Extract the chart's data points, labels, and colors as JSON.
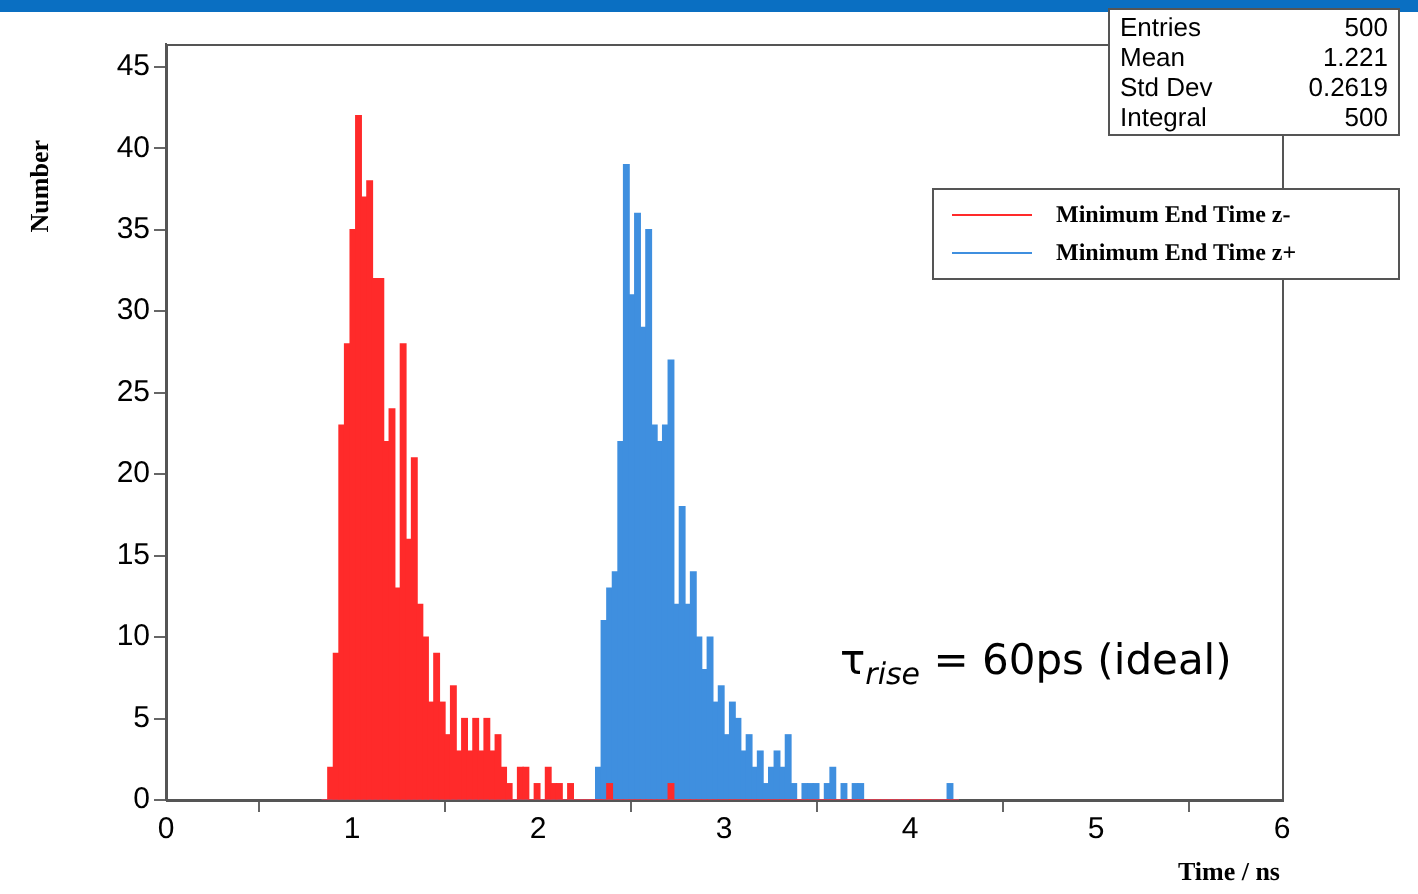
{
  "chart_data": {
    "type": "histogram",
    "xlabel": "Time / ns",
    "ylabel": "Number",
    "bins": [
      0.84,
      0.87,
      0.9,
      0.93,
      0.96,
      0.99,
      1.02,
      1.05,
      1.08,
      1.11,
      1.14,
      1.17,
      1.2,
      1.23,
      1.26,
      1.29,
      1.32,
      1.35,
      1.38,
      1.41,
      1.44,
      1.47,
      1.5,
      1.53,
      1.56,
      1.59,
      1.62,
      1.65,
      1.68,
      1.71,
      1.74,
      1.77,
      1.8,
      1.83,
      1.86,
      1.89,
      1.92,
      1.95,
      1.98,
      2.01,
      2.04,
      2.07,
      2.1,
      2.13,
      2.16,
      2.19,
      2.22,
      2.25,
      2.28,
      2.31,
      2.34,
      2.37,
      2.4,
      2.43,
      2.46,
      2.49,
      2.52,
      2.55,
      2.58,
      2.61,
      2.64,
      2.67,
      2.7,
      2.73,
      2.76,
      2.79,
      2.82,
      2.85,
      2.88,
      2.91,
      2.94,
      2.97,
      3,
      3.03,
      3.06,
      3.09,
      3.12,
      3.15,
      3.18,
      3.21,
      3.24,
      3.27,
      3.3,
      3.33,
      3.36,
      3.39,
      3.42,
      3.45,
      3.48,
      3.51,
      3.54,
      3.57,
      3.6,
      3.63,
      3.66,
      3.69,
      3.72,
      3.75,
      3.78,
      3.81,
      3.84,
      3.87,
      3.9,
      3.93,
      3.96,
      3.99,
      4.02,
      4.05,
      4.08,
      4.11,
      4.14,
      4.17,
      4.2,
      4.23,
      4.26
    ],
    "series": [
      {
        "name": "Minimum End Time z-",
        "color": "#ff2a2a",
        "values": [
          0,
          2,
          9,
          23,
          28,
          35,
          42,
          37,
          38,
          32,
          32,
          22,
          24,
          13,
          28,
          16,
          21,
          12,
          10,
          6,
          9,
          6,
          4,
          7,
          3,
          5,
          3,
          5,
          3,
          5,
          3,
          4,
          2,
          1,
          0,
          2,
          2,
          0,
          1,
          0,
          2,
          1,
          1,
          0,
          1,
          0,
          0,
          0,
          0,
          0,
          0,
          1,
          0,
          0,
          0,
          0,
          0,
          0,
          0,
          0,
          0,
          0,
          1,
          0,
          0,
          0,
          0,
          0,
          0,
          0,
          0,
          0,
          0,
          0,
          0,
          0,
          0,
          0,
          0,
          0,
          0,
          0,
          0,
          0,
          0,
          0,
          0,
          0,
          0,
          0,
          0,
          0,
          0,
          0,
          0,
          0,
          0,
          0,
          0,
          0,
          0,
          0,
          0,
          0,
          0,
          0,
          0,
          0,
          0,
          0,
          0,
          0,
          0,
          0
        ]
      },
      {
        "name": "Minimum End Time z+",
        "color": "#3f8fdf",
        "values": [
          0,
          0,
          0,
          0,
          0,
          0,
          0,
          0,
          0,
          0,
          0,
          0,
          0,
          0,
          0,
          0,
          0,
          0,
          0,
          0,
          0,
          0,
          0,
          0,
          0,
          0,
          0,
          0,
          0,
          0,
          0,
          0,
          0,
          0,
          0,
          0,
          0,
          0,
          0,
          0,
          0,
          0,
          0,
          0,
          0,
          0,
          0,
          0,
          0,
          2,
          11,
          13,
          14,
          22,
          39,
          31,
          36,
          29,
          35,
          23,
          22,
          23,
          27,
          12,
          18,
          12,
          14,
          10,
          8,
          10,
          6,
          7,
          4,
          6,
          5,
          3,
          4,
          2,
          3,
          1,
          2,
          3,
          2,
          4,
          1,
          0,
          1,
          1,
          1,
          0,
          1,
          2,
          0,
          1,
          0,
          1,
          1,
          0,
          0,
          0,
          0,
          0,
          0,
          0,
          0,
          0,
          0,
          0,
          0,
          0,
          0,
          0,
          1,
          0
        ]
      }
    ],
    "xlim": [
      0,
      6
    ],
    "xticks": [
      0,
      1,
      2,
      3,
      4,
      5,
      6
    ],
    "ylim": [
      0,
      46.4
    ],
    "yticks": [
      0,
      5,
      10,
      15,
      20,
      25,
      30,
      35,
      40,
      45
    ],
    "grid": false,
    "legend": "top right",
    "annotations": [
      "Entries 500",
      "Mean 1.221",
      "Std Dev 0.2619",
      "Integral 500",
      "τ$_{rise}$ = 60ps (ideal)"
    ]
  }
}
